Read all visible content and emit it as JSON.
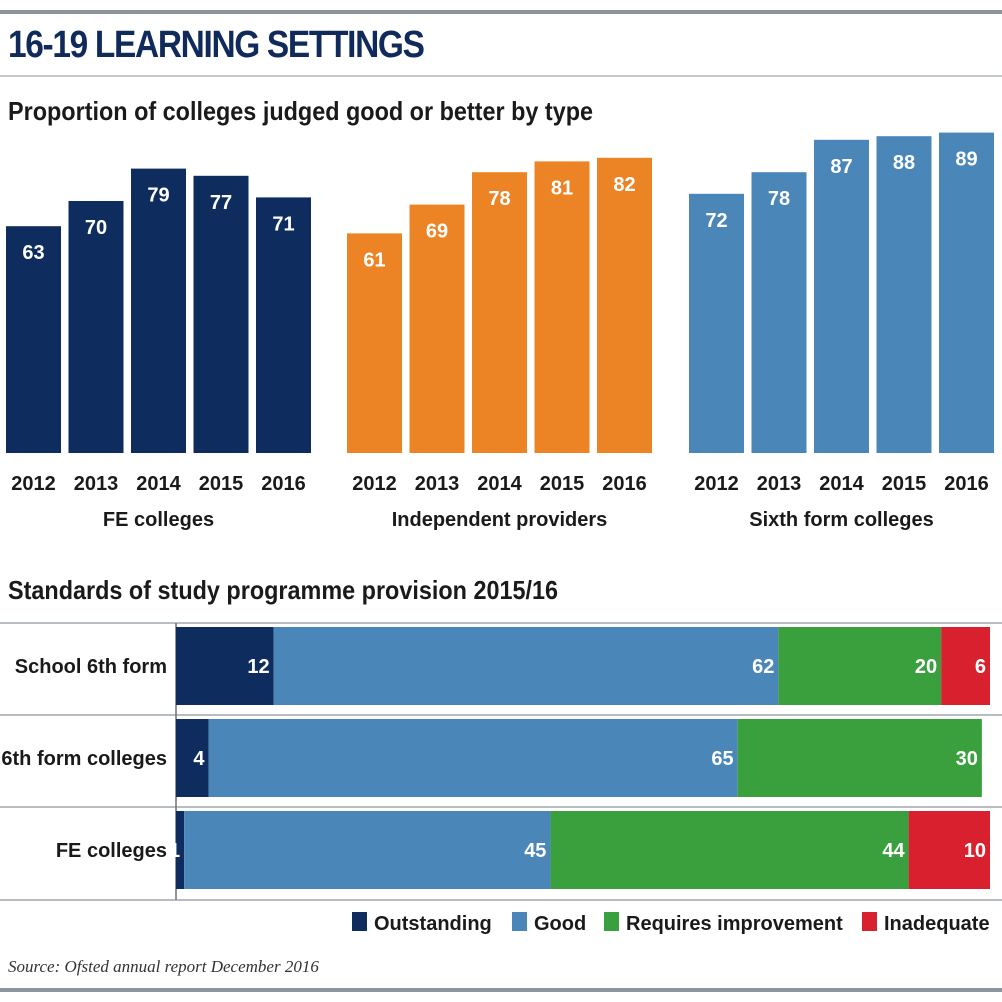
{
  "header": {
    "title": "16-19 LEARNING SETTINGS",
    "subtitle_columns": "Proportion of colleges judged good or better by type",
    "subtitle_stacked": "Standards of study programme provision 2015/16"
  },
  "source": "Source: Ofsted annual report December 2016",
  "colors": {
    "navy": "#0e2d5e",
    "orange": "#ec8426",
    "steel_blue": "#4a87b8",
    "outstanding": "#0e2d5e",
    "good": "#4a87b8",
    "requires_improvement": "#3aa03e",
    "inadequate": "#d9202e",
    "title": "#102a5c"
  },
  "chart_data": [
    {
      "type": "bar",
      "title": "Proportion of colleges judged good or better by type",
      "xlabel": "FE colleges",
      "categories": [
        "2012",
        "2013",
        "2014",
        "2015",
        "2016"
      ],
      "values": [
        63,
        70,
        79,
        77,
        71
      ],
      "color": "#0e2d5e",
      "grid": false
    },
    {
      "type": "bar",
      "xlabel": "Independent providers",
      "categories": [
        "2012",
        "2013",
        "2014",
        "2015",
        "2016"
      ],
      "values": [
        61,
        69,
        78,
        81,
        82
      ],
      "color": "#ec8426",
      "grid": false
    },
    {
      "type": "bar",
      "xlabel": "Sixth form colleges",
      "categories": [
        "2012",
        "2013",
        "2014",
        "2015",
        "2016"
      ],
      "values": [
        72,
        78,
        87,
        88,
        89
      ],
      "color": "#4a87b8",
      "grid": false
    },
    {
      "type": "bar",
      "stacked": true,
      "orientation": "horizontal",
      "title": "Standards of study programme provision 2015/16",
      "categories": [
        "School 6th form",
        "6th form colleges",
        "FE colleges"
      ],
      "series": [
        {
          "name": "Outstanding",
          "values": [
            12,
            4,
            1
          ],
          "color": "#0e2d5e"
        },
        {
          "name": "Good",
          "values": [
            62,
            65,
            45
          ],
          "color": "#4a87b8"
        },
        {
          "name": "Requires improvement",
          "values": [
            20,
            30,
            44
          ],
          "color": "#3aa03e"
        },
        {
          "name": "Inadequate",
          "values": [
            6,
            0,
            10
          ],
          "color": "#d9202e"
        }
      ],
      "legend": "bottom-right",
      "grid": false
    }
  ]
}
